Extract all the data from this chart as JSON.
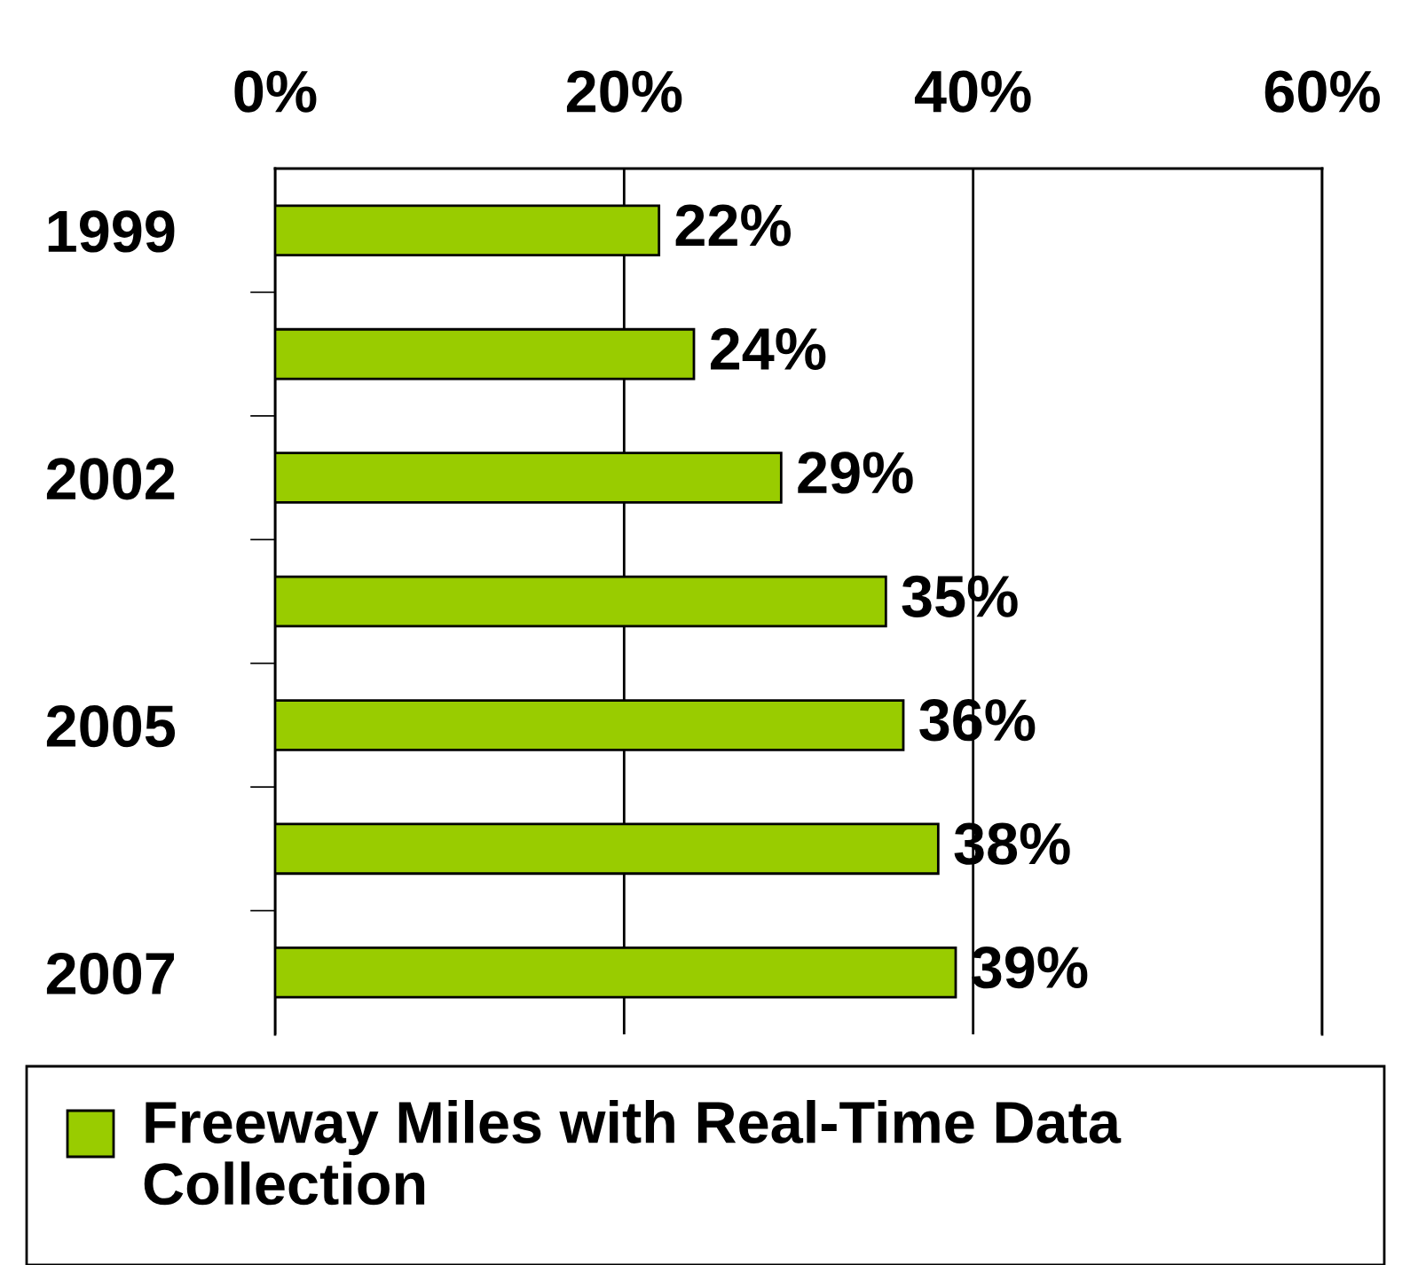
{
  "chart_data": {
    "type": "bar",
    "orientation": "horizontal",
    "categories": [
      "1999",
      null,
      "2002",
      null,
      "2005",
      null,
      "2007"
    ],
    "series": [
      {
        "name": "Freeway Miles with Real-Time Data Collection",
        "color": "#99cc00",
        "values": [
          22,
          24,
          29,
          35,
          36,
          38,
          39
        ]
      }
    ],
    "xlim": [
      0,
      60
    ],
    "xticks": [
      {
        "value": 0,
        "label": "0%"
      },
      {
        "value": 20,
        "label": "20%"
      },
      {
        "value": 40,
        "label": "40%"
      },
      {
        "value": 60,
        "label": "60%"
      }
    ],
    "value_labels": [
      "22%",
      "24%",
      "29%",
      "35%",
      "36%",
      "38%",
      "39%"
    ],
    "grid": "x",
    "legend": "bottom"
  }
}
